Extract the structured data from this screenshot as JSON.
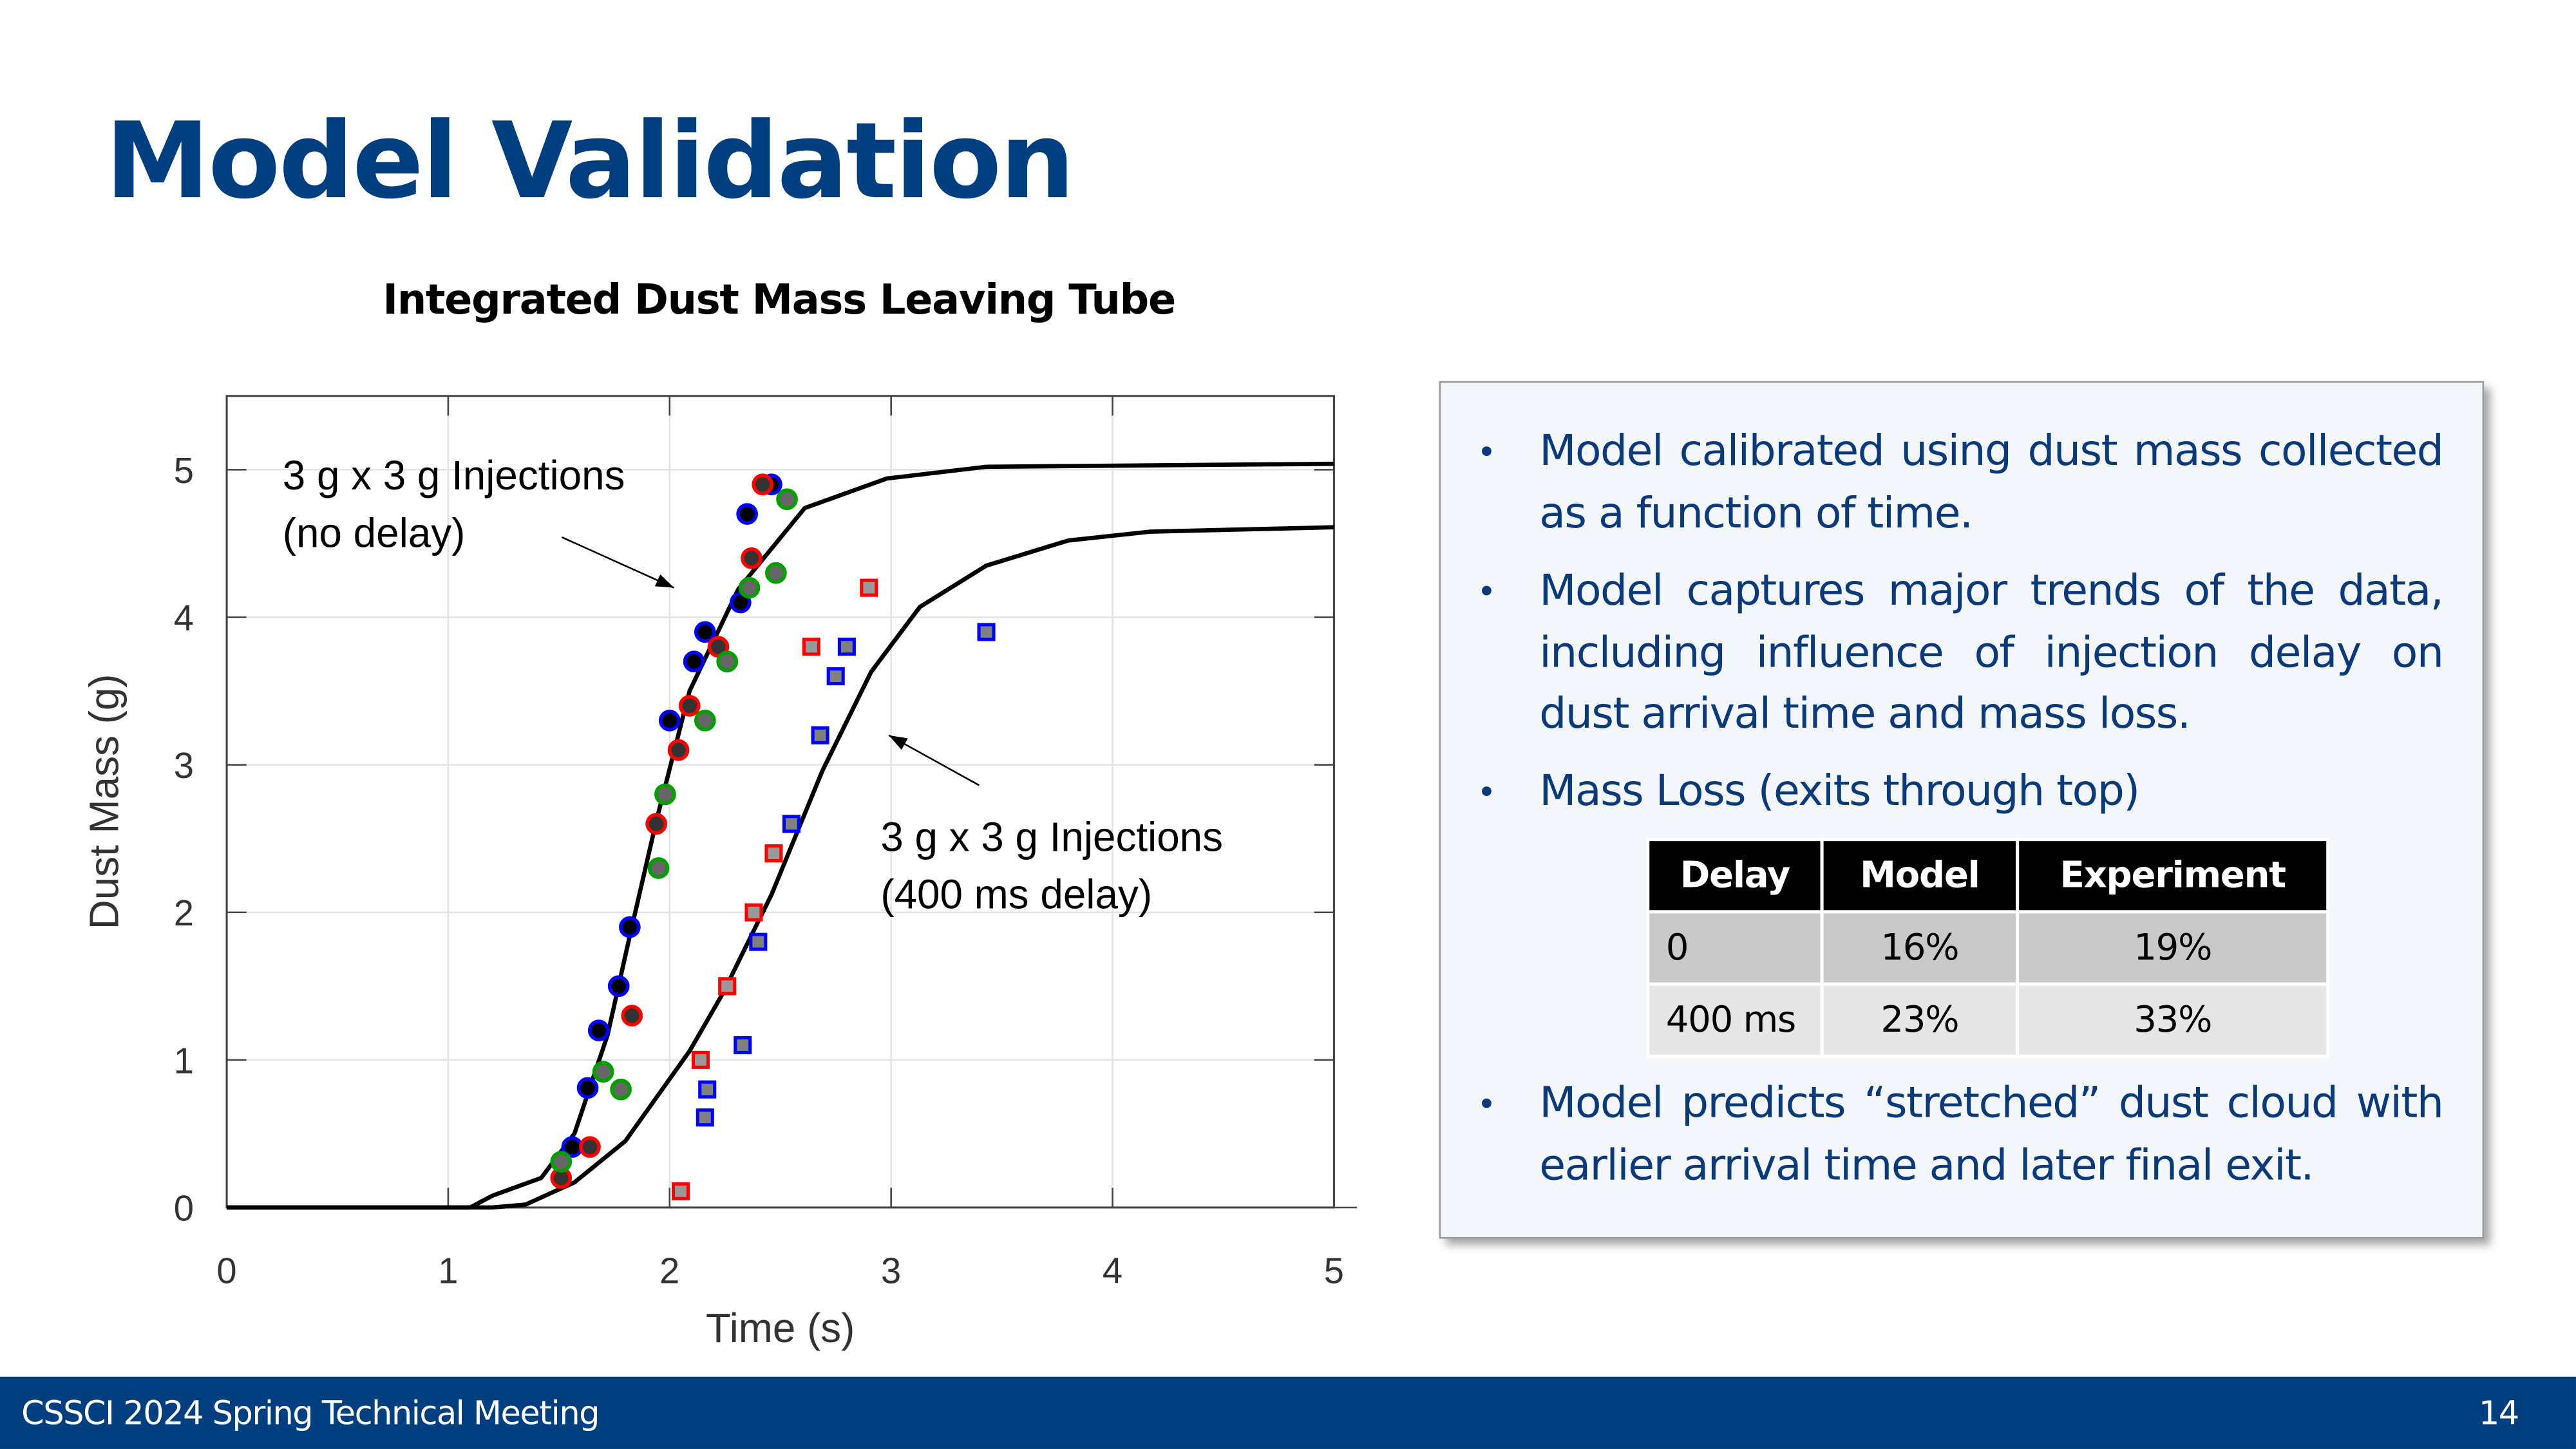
{
  "slide": {
    "title": "Model Validation",
    "footer_left": "CSSCI 2024 Spring Technical Meeting",
    "page_number": "14"
  },
  "chart_data": {
    "type": "scatter",
    "title": "Integrated Dust Mass Leaving Tube",
    "xlabel": "Time (s)",
    "ylabel": "Dust Mass (g)",
    "xlim": [
      0,
      5
    ],
    "ylim": [
      0,
      5.5
    ],
    "xticks": [
      0,
      1,
      2,
      3,
      4,
      5
    ],
    "yticks": [
      0,
      1,
      2,
      3,
      4,
      5
    ],
    "grid": true,
    "annotations": [
      {
        "lines": [
          "3 g x 3 g Injections",
          "(no delay)"
        ],
        "arrow_to": [
          2.02,
          4.2
        ]
      },
      {
        "lines": [
          "3 g x 3 g Injections",
          "(400 ms delay)"
        ],
        "arrow_to": [
          2.99,
          3.2
        ]
      }
    ],
    "model_curves": [
      {
        "x": [
          0,
          1.1,
          1.2,
          1.42,
          1.57,
          1.72,
          1.82,
          1.94,
          2.09,
          2.31,
          2.61,
          2.98,
          3.43,
          5
        ],
        "y": [
          0,
          0,
          0.08,
          0.2,
          0.5,
          1.17,
          1.84,
          2.62,
          3.5,
          4.19,
          4.74,
          4.94,
          5.02,
          5.04
        ],
        "color": "#000000"
      },
      {
        "x": [
          0,
          1.2,
          1.35,
          1.57,
          1.8,
          2.09,
          2.24,
          2.46,
          2.69,
          2.91,
          3.13,
          3.43,
          3.8,
          4.17,
          5
        ],
        "y": [
          0,
          0,
          0.02,
          0.17,
          0.45,
          1.06,
          1.45,
          2.12,
          2.96,
          3.63,
          4.07,
          4.35,
          4.52,
          4.58,
          4.61
        ],
        "color": "#000000"
      }
    ],
    "series": [
      {
        "marker": "circle",
        "edge": "#0000ff",
        "fill": "#000000",
        "x": [
          1.56,
          1.63,
          1.68,
          1.77,
          1.82,
          2.0,
          2.11,
          2.16,
          2.32,
          2.35,
          2.46
        ],
        "y": [
          0.41,
          0.81,
          1.2,
          1.5,
          1.9,
          3.3,
          3.7,
          3.9,
          4.1,
          4.7,
          4.9
        ]
      },
      {
        "marker": "circle",
        "edge": "#ff0000",
        "fill": "#333333",
        "x": [
          1.51,
          1.64,
          1.83,
          1.94,
          2.04,
          2.09,
          2.22,
          2.37,
          2.42
        ],
        "y": [
          0.2,
          0.41,
          1.3,
          2.6,
          3.1,
          3.4,
          3.8,
          4.4,
          4.9
        ]
      },
      {
        "marker": "circle",
        "edge": "#00a000",
        "fill": "#666666",
        "x": [
          1.51,
          1.7,
          1.78,
          1.95,
          1.98,
          2.16,
          2.26,
          2.36,
          2.48,
          2.53
        ],
        "y": [
          0.31,
          0.92,
          0.8,
          2.3,
          2.8,
          3.3,
          3.7,
          4.2,
          4.3,
          4.8
        ]
      },
      {
        "marker": "square",
        "edge": "#ff0000",
        "fill": "#999999",
        "x": [
          2.05,
          2.14,
          2.26,
          2.38,
          2.47,
          2.64,
          2.9
        ],
        "y": [
          0.11,
          1.0,
          1.5,
          2.0,
          2.4,
          3.8,
          4.2
        ]
      },
      {
        "marker": "square",
        "edge": "#0000ff",
        "fill": "#808080",
        "x": [
          2.16,
          2.17,
          2.33,
          2.4,
          2.55,
          2.68,
          2.75,
          2.8,
          3.43
        ],
        "y": [
          0.61,
          0.8,
          1.1,
          1.8,
          2.6,
          3.2,
          3.6,
          3.8,
          3.9
        ]
      }
    ]
  },
  "panel": {
    "bullets": [
      "Model calibrated using dust mass collected as a function of time.",
      "Model captures major trends of the data, including influence of injection delay on dust arrival time and mass loss.",
      "Mass Loss (exits through top)",
      "Model predicts “stretched” dust cloud with earlier arrival time and later final exit."
    ],
    "table": {
      "headers": [
        "Delay",
        "Model",
        "Experiment"
      ],
      "rows": [
        [
          "0",
          "16%",
          "19%"
        ],
        [
          "400 ms",
          "23%",
          "33%"
        ]
      ]
    }
  }
}
